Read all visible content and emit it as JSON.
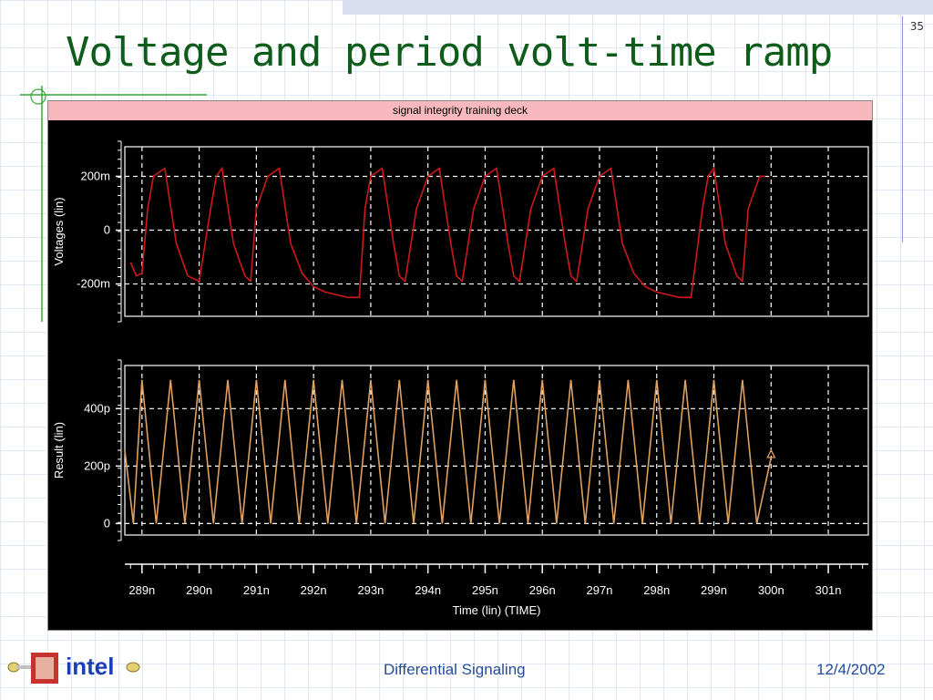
{
  "slide": {
    "title": "Voltage and period volt-time ramp",
    "page_number": "35",
    "footer_title": "Differential Signaling",
    "footer_date": "12/4/2002",
    "logo_text": "intel"
  },
  "scope": {
    "header": "signal integrity training deck"
  },
  "colors": {
    "voltage_trace": "#d01818",
    "result_trace": "#e0a060",
    "grid": "#ffffff",
    "title": "#0d5c1a",
    "footer": "#244c9a"
  },
  "chart_data": [
    {
      "type": "line",
      "ylabel": "Voltages (lin)",
      "y_ticks": [
        {
          "value": 0.2,
          "label": "200m"
        },
        {
          "value": 0,
          "label": "0"
        },
        {
          "value": -0.2,
          "label": "-200m"
        }
      ],
      "ylim": [
        -0.32,
        0.31
      ],
      "xlim": [
        288.7,
        301.7
      ],
      "grid": true,
      "series": [
        {
          "x": [
            288.8,
            288.9,
            289.0,
            289.1,
            289.2,
            289.4,
            289.6,
            289.8,
            290.0,
            290.2,
            290.3,
            290.4,
            290.6,
            290.8,
            290.9,
            291.0,
            291.2,
            291.4,
            291.6,
            291.8,
            292.0,
            292.2,
            292.4,
            292.6,
            292.8,
            292.9,
            293.0,
            293.2,
            293.4,
            293.5,
            293.6,
            293.8,
            294.0,
            294.2,
            294.4,
            294.5,
            294.6,
            294.8,
            295.0,
            295.2,
            295.4,
            295.5,
            295.6,
            295.8,
            296.0,
            296.2,
            296.4,
            296.5,
            296.6,
            296.8,
            297.0,
            297.2,
            297.4,
            297.6,
            297.8,
            298.0,
            298.2,
            298.4,
            298.6,
            298.8,
            298.9,
            299.0,
            299.2,
            299.4,
            299.5,
            299.6,
            299.8,
            299.9
          ],
          "values": [
            -0.12,
            -0.17,
            -0.16,
            0.08,
            0.2,
            0.23,
            -0.05,
            -0.17,
            -0.19,
            0.08,
            0.2,
            0.23,
            -0.05,
            -0.17,
            -0.19,
            0.08,
            0.2,
            0.23,
            -0.05,
            -0.16,
            -0.21,
            -0.23,
            -0.24,
            -0.25,
            -0.25,
            0.08,
            0.2,
            0.23,
            -0.05,
            -0.17,
            -0.19,
            0.08,
            0.2,
            0.23,
            -0.05,
            -0.17,
            -0.19,
            0.08,
            0.2,
            0.23,
            -0.05,
            -0.17,
            -0.19,
            0.08,
            0.2,
            0.23,
            -0.05,
            -0.17,
            -0.19,
            0.08,
            0.2,
            0.23,
            -0.05,
            -0.16,
            -0.21,
            -0.23,
            -0.24,
            -0.25,
            -0.25,
            0.08,
            0.2,
            0.23,
            -0.05,
            -0.17,
            -0.19,
            0.08,
            0.2,
            0.2
          ]
        }
      ]
    },
    {
      "type": "line",
      "ylabel": "Result (lin)",
      "y_ticks": [
        {
          "value": 400,
          "label": "400p"
        },
        {
          "value": 200,
          "label": "200p"
        },
        {
          "value": 0,
          "label": "0"
        }
      ],
      "ylim": [
        -40,
        550
      ],
      "xlim": [
        288.7,
        301.7
      ],
      "grid": true,
      "series": [
        {
          "x": [
            288.7,
            288.85,
            289.0,
            289.25,
            289.5,
            289.75,
            290.0,
            290.25,
            290.5,
            290.75,
            291.0,
            291.25,
            291.5,
            291.75,
            292.0,
            292.25,
            292.5,
            292.75,
            293.0,
            293.25,
            293.5,
            293.75,
            294.0,
            294.25,
            294.5,
            294.75,
            295.0,
            295.25,
            295.5,
            295.75,
            296.0,
            296.25,
            296.5,
            296.75,
            297.0,
            297.25,
            297.5,
            297.75,
            298.0,
            298.25,
            298.5,
            298.75,
            299.0,
            299.25,
            299.5,
            299.75,
            300.0
          ],
          "values": [
            255,
            0,
            500,
            0,
            500,
            0,
            500,
            0,
            500,
            0,
            500,
            0,
            500,
            0,
            500,
            0,
            500,
            0,
            500,
            0,
            500,
            0,
            500,
            0,
            500,
            0,
            500,
            0,
            500,
            0,
            500,
            0,
            500,
            0,
            500,
            0,
            500,
            0,
            500,
            0,
            500,
            0,
            500,
            0,
            500,
            0,
            230
          ]
        }
      ]
    }
  ],
  "time_axis": {
    "label": "Time (lin) (TIME)",
    "ticks": [
      {
        "value": 289,
        "label": "289n"
      },
      {
        "value": 290,
        "label": "290n"
      },
      {
        "value": 291,
        "label": "291n"
      },
      {
        "value": 292,
        "label": "292n"
      },
      {
        "value": 293,
        "label": "293n"
      },
      {
        "value": 294,
        "label": "294n"
      },
      {
        "value": 295,
        "label": "295n"
      },
      {
        "value": 296,
        "label": "296n"
      },
      {
        "value": 297,
        "label": "297n"
      },
      {
        "value": 298,
        "label": "298n"
      },
      {
        "value": 299,
        "label": "299n"
      },
      {
        "value": 300,
        "label": "300n"
      },
      {
        "value": 301,
        "label": "301n"
      }
    ],
    "marker_value": 300.0
  }
}
